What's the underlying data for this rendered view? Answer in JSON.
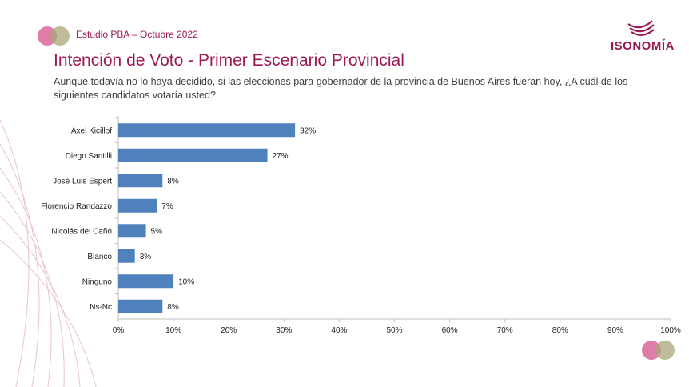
{
  "header": {
    "study_label": "Estudio PBA – Octubre 2022",
    "brand": "ISONOMÍA",
    "title": "Intención de Voto - Primer Escenario Provincial",
    "question": "Aunque todavía no lo haya decidido, si las elecciones para gobernador de la provincia de Buenos Aires fueran hoy, ¿A cuál de los siguientes candidatos votaría usted?"
  },
  "colors": {
    "bar": "#4f81bd",
    "accent": "#9c1a55",
    "circle_pink": "#d9669a",
    "circle_olive": "#a8a67a"
  },
  "chart_data": {
    "type": "bar",
    "orientation": "horizontal",
    "categories": [
      "Axel Kicillof",
      "Diego Santilli",
      "José Luis Espert",
      "Florencio Randazzo",
      "Nicolás del Caño",
      "Blanco",
      "Ninguno",
      "Ns-Nc"
    ],
    "values": [
      32,
      27,
      8,
      7,
      5,
      3,
      10,
      8
    ],
    "value_labels": [
      "32%",
      "27%",
      "8%",
      "7%",
      "5%",
      "3%",
      "10%",
      "8%"
    ],
    "xlim": [
      0,
      100
    ],
    "x_ticks": [
      "0%",
      "10%",
      "20%",
      "30%",
      "40%",
      "50%",
      "60%",
      "70%",
      "80%",
      "90%",
      "100%"
    ],
    "grid": false,
    "legend": "none"
  }
}
